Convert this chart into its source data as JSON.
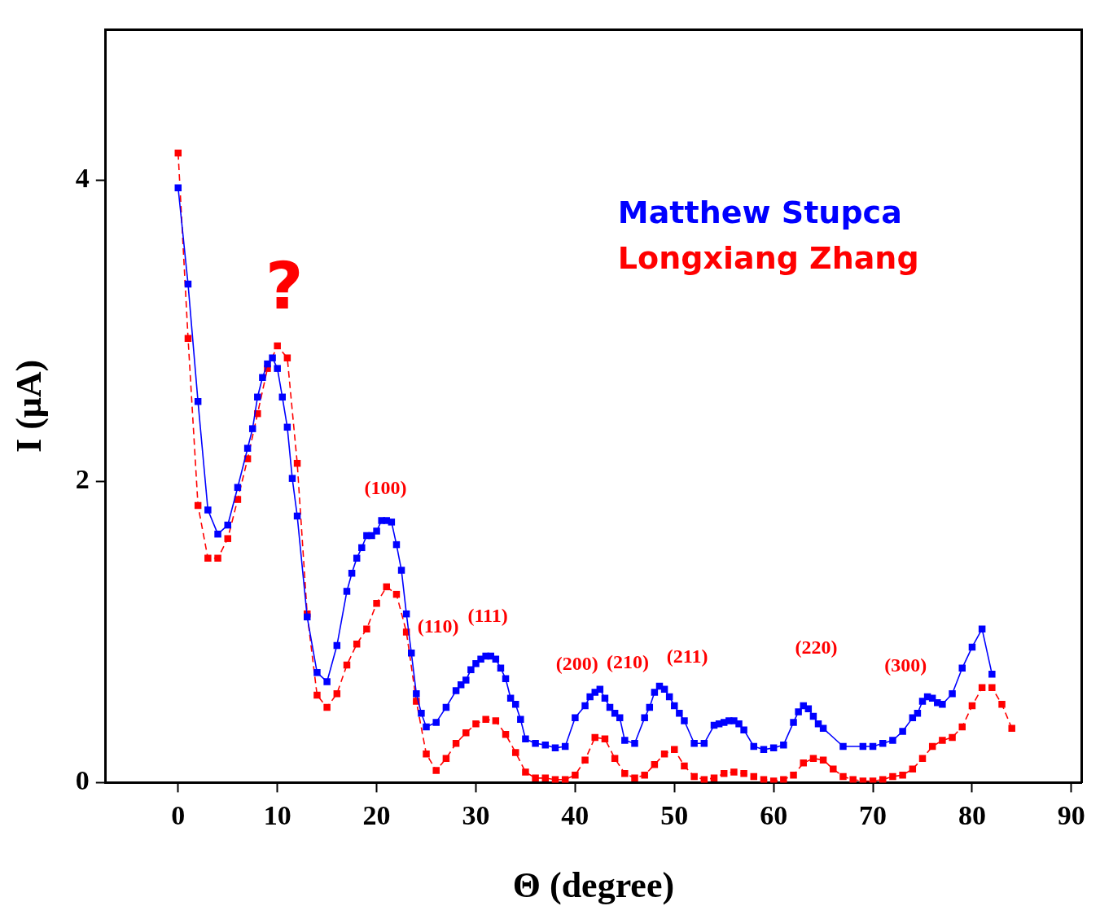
{
  "chart_data": {
    "type": "line",
    "xlabel": "Θ (degree)",
    "ylabel": "I (μA)",
    "xlim": [
      -7.3,
      91
    ],
    "xticks": [
      0,
      10,
      20,
      30,
      40,
      50,
      60,
      70,
      80,
      90
    ],
    "ylim": [
      0,
      5
    ],
    "yticks": [
      0,
      2,
      4
    ],
    "grid": false,
    "legend": "top right",
    "series": [
      {
        "name": "Matthew Stupca",
        "color": "#0000ff",
        "marker": "square",
        "line_style": "solid",
        "x": [
          0,
          1,
          2,
          3,
          4,
          5,
          6,
          7,
          7.5,
          8,
          8.5,
          9,
          9.5,
          10,
          10.5,
          11,
          11.5,
          12,
          13,
          14,
          15,
          16,
          17,
          17.5,
          18,
          18.5,
          19,
          19.5,
          20,
          20.5,
          21,
          21.5,
          22,
          22.5,
          23,
          23.5,
          24,
          24.5,
          25,
          26,
          27,
          28,
          28.5,
          29,
          29.5,
          30,
          30.5,
          31,
          31.5,
          32,
          32.5,
          33,
          33.5,
          34,
          34.5,
          35,
          36,
          37,
          38,
          39,
          40,
          41,
          41.5,
          42,
          42.5,
          43,
          43.5,
          44,
          44.5,
          45,
          46,
          47,
          47.5,
          48,
          48.5,
          49,
          49.5,
          50,
          50.5,
          51,
          52,
          53,
          54,
          54.5,
          55,
          55.5,
          56,
          56.5,
          57,
          58,
          59,
          60,
          61,
          62,
          62.5,
          63,
          63.5,
          64,
          64.5,
          65,
          67,
          69,
          70,
          71,
          72,
          73,
          74,
          74.5,
          75,
          75.5,
          76,
          76.5,
          77,
          78,
          79,
          80,
          81,
          82
        ],
        "values": [
          3.95,
          3.31,
          2.53,
          1.81,
          1.65,
          1.71,
          1.96,
          2.22,
          2.35,
          2.56,
          2.69,
          2.78,
          2.82,
          2.75,
          2.56,
          2.36,
          2.02,
          1.77,
          1.1,
          0.73,
          0.67,
          0.91,
          1.27,
          1.39,
          1.49,
          1.56,
          1.64,
          1.64,
          1.67,
          1.74,
          1.74,
          1.73,
          1.58,
          1.41,
          1.12,
          0.86,
          0.59,
          0.46,
          0.37,
          0.4,
          0.5,
          0.61,
          0.65,
          0.68,
          0.75,
          0.79,
          0.82,
          0.84,
          0.84,
          0.82,
          0.76,
          0.69,
          0.56,
          0.52,
          0.42,
          0.29,
          0.26,
          0.25,
          0.23,
          0.24,
          0.43,
          0.51,
          0.57,
          0.6,
          0.62,
          0.56,
          0.5,
          0.46,
          0.43,
          0.28,
          0.26,
          0.43,
          0.5,
          0.6,
          0.64,
          0.62,
          0.57,
          0.51,
          0.46,
          0.41,
          0.26,
          0.26,
          0.38,
          0.39,
          0.4,
          0.41,
          0.41,
          0.39,
          0.35,
          0.24,
          0.22,
          0.23,
          0.25,
          0.4,
          0.47,
          0.51,
          0.49,
          0.44,
          0.39,
          0.36,
          0.24,
          0.24,
          0.24,
          0.26,
          0.28,
          0.34,
          0.43,
          0.46,
          0.54,
          0.57,
          0.56,
          0.53,
          0.52,
          0.59,
          0.76,
          0.9,
          1.02,
          0.72
        ]
      },
      {
        "name": "Longxiang Zhang",
        "color": "#ff0000",
        "marker": "square",
        "line_style": "dashed",
        "x": [
          0,
          1,
          2,
          3,
          4,
          5,
          6,
          7,
          8,
          9,
          10,
          11,
          12,
          13,
          14,
          15,
          16,
          17,
          18,
          19,
          20,
          21,
          22,
          23,
          24,
          25,
          26,
          27,
          28,
          29,
          30,
          31,
          32,
          33,
          34,
          35,
          36,
          37,
          38,
          39,
          40,
          41,
          42,
          43,
          44,
          45,
          46,
          47,
          48,
          49,
          50,
          51,
          52,
          53,
          54,
          55,
          56,
          57,
          58,
          59,
          60,
          61,
          62,
          63,
          64,
          65,
          66,
          67,
          68,
          69,
          70,
          71,
          72,
          73,
          74,
          75,
          76,
          77,
          78,
          79,
          80,
          81,
          82,
          83,
          84
        ],
        "values": [
          4.18,
          2.95,
          1.84,
          1.49,
          1.49,
          1.62,
          1.88,
          2.15,
          2.45,
          2.75,
          2.9,
          2.82,
          2.12,
          1.12,
          0.58,
          0.5,
          0.59,
          0.78,
          0.92,
          1.02,
          1.19,
          1.3,
          1.25,
          1.0,
          0.54,
          0.19,
          0.08,
          0.16,
          0.26,
          0.33,
          0.39,
          0.42,
          0.41,
          0.32,
          0.2,
          0.07,
          0.03,
          0.03,
          0.02,
          0.02,
          0.05,
          0.15,
          0.3,
          0.29,
          0.16,
          0.06,
          0.03,
          0.05,
          0.12,
          0.19,
          0.22,
          0.11,
          0.04,
          0.02,
          0.03,
          0.06,
          0.07,
          0.06,
          0.04,
          0.02,
          0.01,
          0.02,
          0.05,
          0.13,
          0.16,
          0.15,
          0.09,
          0.04,
          0.02,
          0.01,
          0.01,
          0.02,
          0.04,
          0.05,
          0.09,
          0.16,
          0.24,
          0.28,
          0.3,
          0.37,
          0.51,
          0.63,
          0.63,
          0.52,
          0.36
        ]
      }
    ],
    "annotations": [
      "?",
      "(100)",
      "(110)",
      "(111)",
      "(200)",
      "(210)",
      "(211)",
      "(220)",
      "(300)"
    ]
  }
}
